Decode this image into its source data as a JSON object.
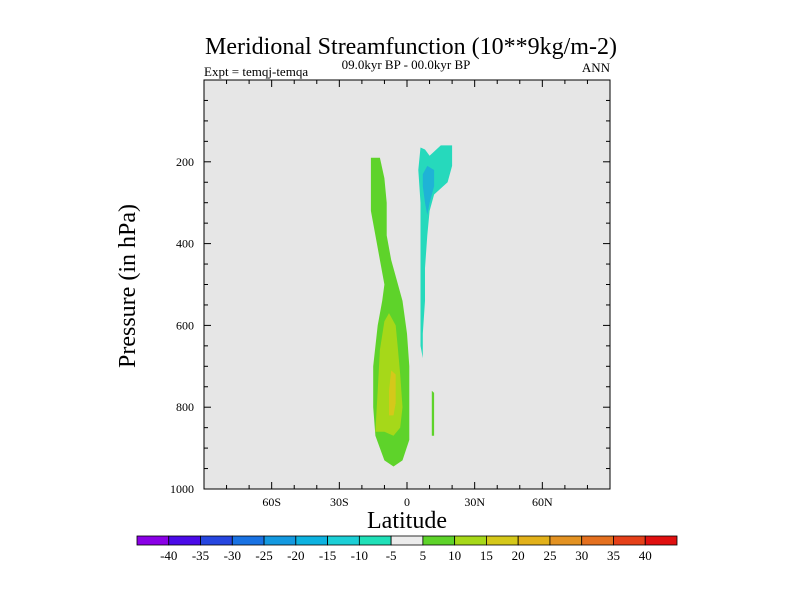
{
  "chart_data": {
    "type": "contour",
    "title": "Meridional Streamfunction (10**9kg/m-2)",
    "subtitle": "09.0kyr BP - 00.0kyr BP",
    "left_label": "Expt = temqj-temqa",
    "right_label": "ANN",
    "xlabel": "Latitude",
    "ylabel": "Pressure (in hPa)",
    "xlim": [
      -90,
      90
    ],
    "ylim": [
      1000,
      0
    ],
    "x_ticks": [
      -60,
      -30,
      0,
      30,
      60
    ],
    "x_tick_labels": [
      "60S",
      "30S",
      "0",
      "30N",
      "60N"
    ],
    "y_ticks": [
      200,
      400,
      600,
      800,
      1000
    ],
    "y_tick_labels": [
      "200",
      "400",
      "600",
      "800",
      "1000"
    ],
    "background_color": "#e6e6e6",
    "regions": [
      {
        "name": "positive-cell-outer",
        "level": 5,
        "color": "#5ed32a",
        "points": [
          [
            -16,
            190
          ],
          [
            -12,
            190
          ],
          [
            -10,
            240
          ],
          [
            -9,
            300
          ],
          [
            -9,
            380
          ],
          [
            -7,
            440
          ],
          [
            -5,
            480
          ],
          [
            -2,
            540
          ],
          [
            0,
            620
          ],
          [
            1,
            700
          ],
          [
            1,
            800
          ],
          [
            1,
            880
          ],
          [
            -2,
            930
          ],
          [
            -6,
            945
          ],
          [
            -10,
            930
          ],
          [
            -14,
            870
          ],
          [
            -15,
            800
          ],
          [
            -15,
            700
          ],
          [
            -13,
            600
          ],
          [
            -11,
            540
          ],
          [
            -10,
            500
          ],
          [
            -12,
            440
          ],
          [
            -14,
            380
          ],
          [
            -16,
            320
          ],
          [
            -16,
            250
          ]
        ]
      },
      {
        "name": "positive-cell-outer-sliver",
        "level": 5,
        "color": "#5ed32a",
        "points": [
          [
            11,
            760
          ],
          [
            12,
            765
          ],
          [
            12,
            870
          ],
          [
            11,
            870
          ]
        ]
      },
      {
        "name": "positive-cell-mid",
        "level": 10,
        "color": "#a6d819",
        "points": [
          [
            -14,
            860
          ],
          [
            -13,
            760
          ],
          [
            -12,
            660
          ],
          [
            -10,
            590
          ],
          [
            -8,
            570
          ],
          [
            -5,
            600
          ],
          [
            -4,
            660
          ],
          [
            -3,
            720
          ],
          [
            -2,
            800
          ],
          [
            -3,
            850
          ],
          [
            -6,
            870
          ],
          [
            -10,
            860
          ]
        ]
      },
      {
        "name": "positive-cell-core",
        "level": 15,
        "color": "#d5c81a",
        "points": [
          [
            -8,
            820
          ],
          [
            -8,
            760
          ],
          [
            -7,
            710
          ],
          [
            -5,
            720
          ],
          [
            -5,
            790
          ],
          [
            -6,
            820
          ]
        ]
      },
      {
        "name": "negative-cell-outer",
        "level": -5,
        "color": "#26d9bc",
        "points": [
          [
            6,
            165
          ],
          [
            8,
            170
          ],
          [
            10,
            185
          ],
          [
            15,
            160
          ],
          [
            20,
            160
          ],
          [
            20,
            210
          ],
          [
            18,
            250
          ],
          [
            12,
            280
          ],
          [
            10,
            320
          ],
          [
            9,
            380
          ],
          [
            8,
            460
          ],
          [
            8,
            540
          ],
          [
            7,
            620
          ],
          [
            7,
            680
          ],
          [
            6,
            650
          ],
          [
            6,
            540
          ],
          [
            6,
            420
          ],
          [
            6,
            300
          ],
          [
            5,
            220
          ]
        ]
      },
      {
        "name": "negative-cell-inner",
        "level": -10,
        "color": "#1fb3d6",
        "points": [
          [
            7,
            230
          ],
          [
            9,
            210
          ],
          [
            12,
            220
          ],
          [
            12,
            260
          ],
          [
            10,
            300
          ],
          [
            9,
            330
          ],
          [
            8,
            300
          ],
          [
            7,
            260
          ]
        ]
      }
    ],
    "colorbar": {
      "levels": [
        "-40",
        "-35",
        "-30",
        "-25",
        "-20",
        "-15",
        "-10",
        "-5",
        "5",
        "10",
        "15",
        "20",
        "25",
        "30",
        "35",
        "40"
      ],
      "colors": [
        "#8a00e6",
        "#4b0ae8",
        "#2646e0",
        "#1972e3",
        "#1399e0",
        "#0db2e0",
        "#1ccfd6",
        "#20e0b8",
        "#ececec",
        "#5ed32a",
        "#a6d819",
        "#d5c81a",
        "#e2b11a",
        "#e39222",
        "#e4701f",
        "#e54019",
        "#e01010"
      ]
    }
  }
}
